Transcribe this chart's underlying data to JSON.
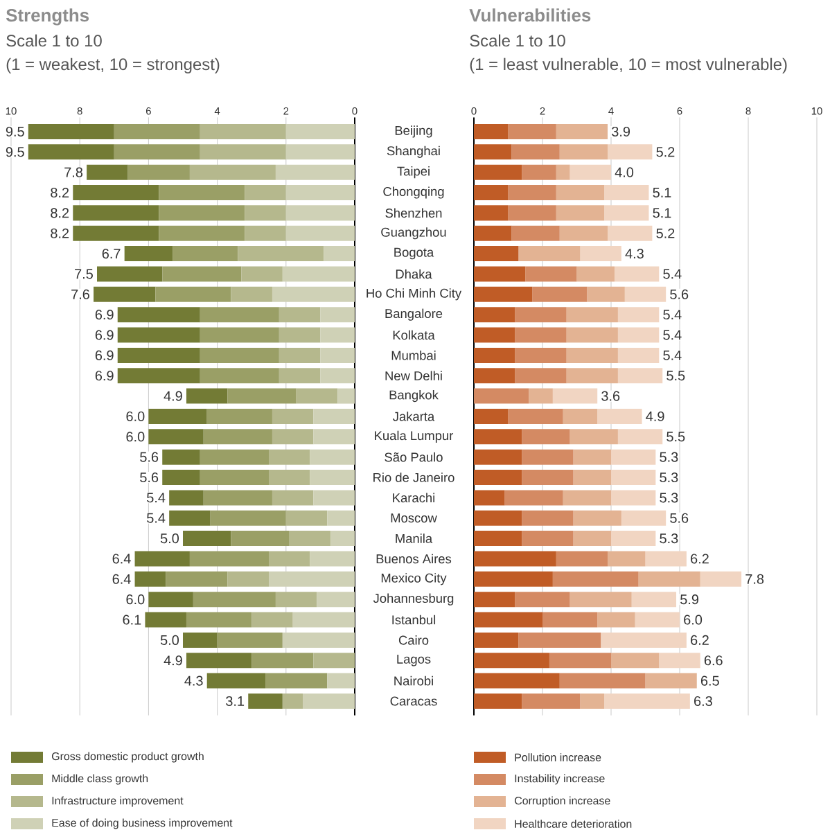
{
  "chart_data": [
    {
      "type": "bar",
      "title": "Strengths",
      "subtitle": "Scale 1 to 10",
      "annotations": [
        "(1 = weakest, 10 = strongest)"
      ],
      "orientation": "horizontal",
      "stacked": true,
      "grid": "x",
      "legend": "bottom",
      "xlim": [
        10,
        0
      ],
      "xticks": [
        10,
        8,
        6,
        4,
        2,
        0
      ],
      "categories": [
        "Beijing",
        "Shanghai",
        "Taipei",
        "Chongqing",
        "Shenzhen",
        "Guangzhou",
        "Bogota",
        "Dhaka",
        "Ho Chi Minh City",
        "Bangalore",
        "Kolkata",
        "Mumbai",
        "New Delhi",
        "Bangkok",
        "Jakarta",
        "Kuala Lumpur",
        "São Paulo",
        "Rio de Janeiro",
        "Karachi",
        "Moscow",
        "Manila",
        "Buenos Aires",
        "Mexico City",
        "Johannesburg",
        "Istanbul",
        "Cairo",
        "Lagos",
        "Nairobi",
        "Caracas"
      ],
      "series": [
        {
          "name": "Ease of doing business improvement",
          "color": "#cfd1b6",
          "values": [
            2.0,
            2.0,
            2.3,
            2.0,
            2.0,
            2.0,
            0.9,
            2.1,
            2.4,
            1.0,
            1.0,
            1.0,
            1.0,
            0.5,
            1.2,
            1.2,
            1.3,
            1.3,
            1.2,
            0.8,
            0.7,
            1.3,
            2.5,
            1.1,
            1.8,
            2.1,
            0,
            0.8,
            1.5
          ]
        },
        {
          "name": "Infrastructure improvement",
          "color": "#b5b88d",
          "values": [
            2.5,
            2.5,
            2.5,
            1.2,
            1.2,
            1.2,
            2.5,
            1.2,
            1.2,
            1.2,
            1.2,
            1.2,
            1.2,
            1.2,
            1.2,
            1.2,
            1.2,
            1.2,
            1.2,
            1.2,
            1.2,
            1.2,
            1.2,
            1.2,
            1.2,
            0,
            1.2,
            0,
            0.6
          ]
        },
        {
          "name": "Middle class growth",
          "color": "#9a9f66",
          "values": [
            2.5,
            2.5,
            1.8,
            2.5,
            2.5,
            2.5,
            1.9,
            2.3,
            2.2,
            2.3,
            2.3,
            2.3,
            2.3,
            2.0,
            1.9,
            2.0,
            2.0,
            2.0,
            2.0,
            2.2,
            1.7,
            2.3,
            1.8,
            2.4,
            1.9,
            1.9,
            1.8,
            1.8,
            0
          ]
        },
        {
          "name": "Gross domestic product growth",
          "color": "#737b35",
          "values": [
            2.5,
            2.5,
            1.2,
            2.5,
            2.5,
            2.5,
            1.4,
            1.9,
            1.8,
            2.4,
            2.4,
            2.4,
            2.4,
            1.2,
            1.7,
            1.6,
            1.1,
            1.1,
            1.0,
            1.2,
            1.4,
            1.6,
            0.9,
            1.3,
            1.2,
            1.0,
            1.9,
            1.7,
            1.0
          ]
        }
      ],
      "totals": [
        "9.5",
        "9.5",
        "7.8",
        "8.2",
        "8.2",
        "8.2",
        "6.7",
        "7.5",
        "7.6",
        "6.9",
        "6.9",
        "6.9",
        "6.9",
        "4.9",
        "6.0",
        "6.0",
        "5.6",
        "5.6",
        "5.4",
        "5.4",
        "5.0",
        "6.4",
        "6.4",
        "6.0",
        "6.1",
        "5.0",
        "4.9",
        "4.3",
        "3.1"
      ]
    },
    {
      "type": "bar",
      "title": "Vulnerabilities",
      "subtitle": "Scale 1 to 10",
      "annotations": [
        "(1 = least vulnerable, 10 = most vulnerable)"
      ],
      "orientation": "horizontal",
      "stacked": true,
      "grid": "x",
      "legend": "bottom",
      "xlim": [
        0,
        10
      ],
      "xticks": [
        0,
        2,
        4,
        6,
        8,
        10
      ],
      "categories": [
        null,
        null,
        null,
        null,
        null,
        null,
        null,
        null,
        null,
        null,
        null,
        null,
        null,
        null,
        null,
        null,
        null,
        null,
        null,
        null,
        null,
        null,
        null,
        null,
        null,
        null,
        null,
        null,
        null
      ],
      "series": [
        {
          "name": "Pollution increase",
          "color": "#c05c26",
          "values": [
            1.0,
            1.1,
            1.4,
            1.0,
            1.0,
            1.1,
            1.3,
            1.5,
            1.7,
            1.2,
            1.2,
            1.2,
            1.2,
            0,
            1.0,
            1.4,
            1.4,
            1.4,
            0.9,
            1.4,
            1.4,
            2.4,
            2.3,
            1.2,
            2.0,
            1.3,
            2.2,
            2.5,
            1.4
          ]
        },
        {
          "name": "Instability increase",
          "color": "#d48a63",
          "values": [
            1.4,
            1.4,
            1.0,
            1.4,
            1.4,
            1.4,
            0,
            1.5,
            1.6,
            1.5,
            1.5,
            1.5,
            1.5,
            1.6,
            1.6,
            1.4,
            1.5,
            1.5,
            1.7,
            1.5,
            1.5,
            1.5,
            2.5,
            1.6,
            1.6,
            2.4,
            1.8,
            2.5,
            1.7
          ]
        },
        {
          "name": "Corruption increase",
          "color": "#e3b393",
          "values": [
            1.5,
            1.4,
            0.4,
            1.4,
            1.4,
            1.4,
            1.8,
            1.1,
            1.1,
            1.5,
            1.5,
            1.5,
            1.5,
            0.7,
            1.0,
            1.4,
            1.1,
            1.1,
            1.4,
            1.4,
            1.1,
            1.1,
            1.8,
            1.8,
            1.1,
            0,
            1.4,
            1.5,
            0.7
          ]
        },
        {
          "name": "Healthcare deterioration",
          "color": "#f1d5c2",
          "values": [
            0,
            1.3,
            1.2,
            1.3,
            1.3,
            1.3,
            1.2,
            1.3,
            1.2,
            1.2,
            1.2,
            1.2,
            1.3,
            1.3,
            1.3,
            1.3,
            1.3,
            1.3,
            1.3,
            1.3,
            1.3,
            1.2,
            1.2,
            1.3,
            1.3,
            2.5,
            1.2,
            0,
            2.5
          ]
        }
      ],
      "totals": [
        "3.9",
        "5.2",
        "4.0",
        "5.1",
        "5.1",
        "5.2",
        "4.3",
        "5.4",
        "5.6",
        "5.4",
        "5.4",
        "5.4",
        "5.5",
        "3.6",
        "4.9",
        "5.5",
        "5.3",
        "5.3",
        "5.3",
        "5.6",
        "5.3",
        "6.2",
        "7.8",
        "5.9",
        "6.0",
        "6.2",
        "6.6",
        "6.5",
        "6.3"
      ]
    }
  ]
}
